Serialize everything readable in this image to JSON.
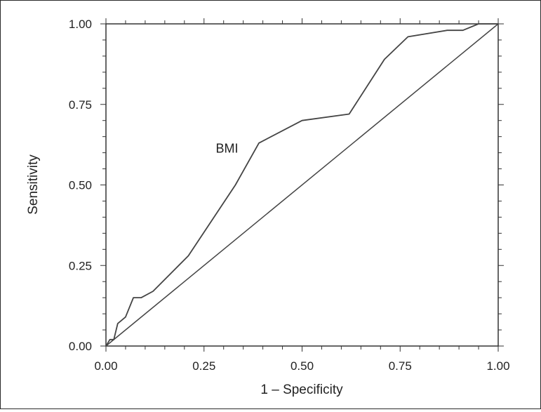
{
  "chart_data": {
    "type": "line",
    "xlabel": "1 – Specificity",
    "ylabel": "Sensitivity",
    "xlim": [
      0,
      1
    ],
    "ylim": [
      0,
      1
    ],
    "x_ticks": [
      "0.00",
      "0.25",
      "0.50",
      "0.75",
      "1.00"
    ],
    "y_ticks": [
      "0.00",
      "0.25",
      "0.50",
      "0.75",
      "1.00"
    ],
    "grid": false,
    "annotations": [
      {
        "text": "BMI",
        "x": 0.28,
        "y": 0.6
      }
    ],
    "series": [
      {
        "name": "BMI",
        "points": [
          [
            0.0,
            0.0
          ],
          [
            0.01,
            0.02
          ],
          [
            0.02,
            0.02
          ],
          [
            0.03,
            0.07
          ],
          [
            0.05,
            0.09
          ],
          [
            0.07,
            0.15
          ],
          [
            0.09,
            0.15
          ],
          [
            0.12,
            0.17
          ],
          [
            0.21,
            0.28
          ],
          [
            0.33,
            0.5
          ],
          [
            0.39,
            0.63
          ],
          [
            0.5,
            0.7
          ],
          [
            0.62,
            0.72
          ],
          [
            0.71,
            0.89
          ],
          [
            0.77,
            0.96
          ],
          [
            0.87,
            0.98
          ],
          [
            0.91,
            0.98
          ],
          [
            0.95,
            1.0
          ],
          [
            1.0,
            1.0
          ]
        ]
      },
      {
        "points": [
          [
            0,
            0
          ],
          [
            1,
            1
          ]
        ]
      }
    ],
    "colors": {
      "line": "#444444",
      "axis": "#333333"
    }
  }
}
